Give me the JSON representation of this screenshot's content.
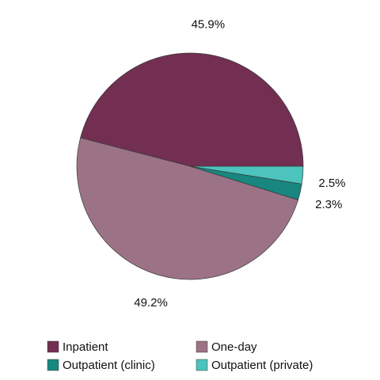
{
  "chart_data": {
    "type": "pie",
    "categories": [
      "Inpatient",
      "One-day",
      "Outpatient (clinic)",
      "Outpatient (private)"
    ],
    "values": [
      45.9,
      49.2,
      2.3,
      2.5
    ],
    "value_labels": [
      "45.9%",
      "49.2%",
      "2.3%",
      "2.5%"
    ],
    "colors": [
      "#722f52",
      "#9c7386",
      "#17877f",
      "#4cc4bd"
    ],
    "legend": "bottom"
  }
}
